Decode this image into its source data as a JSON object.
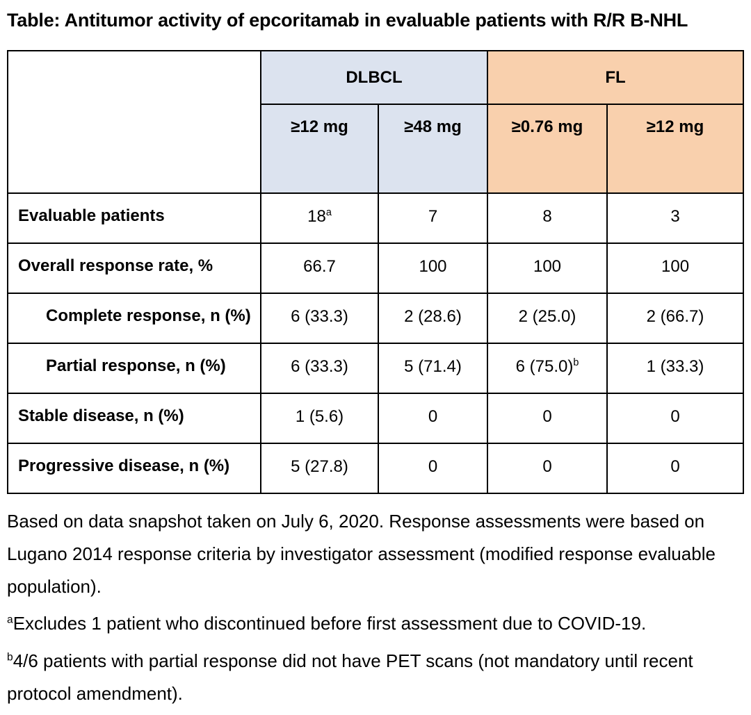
{
  "title": "Table: Antitumor activity of epcoritamab in evaluable patients with R/R B-NHL",
  "colors": {
    "dlbcl_header_bg": "#dce3ef",
    "fl_header_bg": "#f9d0ad",
    "border": "#000000",
    "text": "#000000"
  },
  "table": {
    "group_headers": [
      {
        "label": "DLBCL",
        "span": 2,
        "group": "dlbcl"
      },
      {
        "label": "FL",
        "span": 2,
        "group": "fl"
      }
    ],
    "dose_headers": [
      {
        "label": "≥12 mg",
        "group": "dlbcl"
      },
      {
        "label": "≥48 mg",
        "group": "dlbcl"
      },
      {
        "label": "≥0.76 mg",
        "group": "fl"
      },
      {
        "label": "≥12 mg",
        "group": "fl"
      }
    ],
    "rows": [
      {
        "label": "Evaluable patients",
        "indent": false,
        "values": [
          {
            "text": "18",
            "sup": "a"
          },
          {
            "text": "7"
          },
          {
            "text": "8"
          },
          {
            "text": "3"
          }
        ]
      },
      {
        "label": "Overall response rate, %",
        "indent": false,
        "values": [
          {
            "text": "66.7"
          },
          {
            "text": "100"
          },
          {
            "text": "100"
          },
          {
            "text": "100"
          }
        ]
      },
      {
        "label": "Complete response, n (%)",
        "indent": true,
        "values": [
          {
            "text": "6 (33.3)"
          },
          {
            "text": "2 (28.6)"
          },
          {
            "text": "2 (25.0)"
          },
          {
            "text": "2 (66.7)"
          }
        ]
      },
      {
        "label": "Partial response, n (%)",
        "indent": true,
        "values": [
          {
            "text": "6 (33.3)"
          },
          {
            "text": "5 (71.4)"
          },
          {
            "text": "6 (75.0)",
            "sup": "b"
          },
          {
            "text": "1 (33.3)"
          }
        ]
      },
      {
        "label": "Stable disease, n (%)",
        "indent": false,
        "values": [
          {
            "text": "1 (5.6)"
          },
          {
            "text": "0"
          },
          {
            "text": "0"
          },
          {
            "text": "0"
          }
        ]
      },
      {
        "label": "Progressive disease, n (%)",
        "indent": false,
        "values": [
          {
            "text": "5 (27.8)"
          },
          {
            "text": "0"
          },
          {
            "text": "0"
          },
          {
            "text": "0"
          }
        ]
      }
    ]
  },
  "footnotes": {
    "general": "Based on data snapshot taken on July 6, 2020. Response assessments were based on Lugano 2014 response criteria by investigator assessment (modified response evaluable population).",
    "a_marker": "a",
    "a_text": "Excludes 1 patient who discontinued before first assessment due to COVID-19.",
    "b_marker": "b",
    "b_text": "4/6 patients with partial response did not have PET scans (not mandatory until recent protocol amendment)."
  }
}
